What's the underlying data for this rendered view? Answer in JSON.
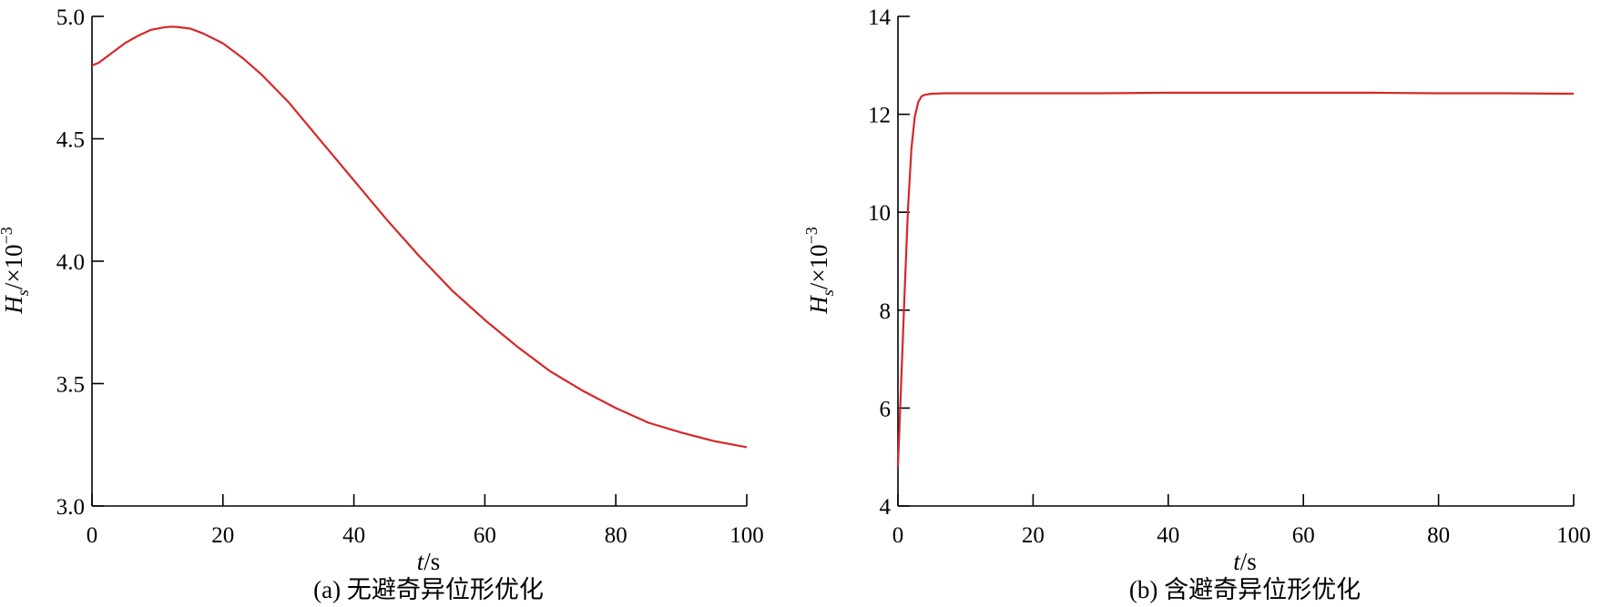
{
  "chart_data": [
    {
      "type": "line",
      "caption": "(a) 无避奇异位形优化",
      "xlabel": {
        "var": "t",
        "unit": "/s"
      },
      "ylabel": {
        "var": "H",
        "sub": "s",
        "unit": "/×10",
        "sup": "−3"
      },
      "xlim": [
        0,
        100
      ],
      "ylim": [
        3.0,
        5.0
      ],
      "xticks": [
        0,
        20,
        40,
        60,
        80,
        100
      ],
      "yticks": [
        3.0,
        3.5,
        4.0,
        4.5,
        5.0
      ],
      "ytick_labels": [
        "3.0",
        "3.5",
        "4.0",
        "4.5",
        "5.0"
      ],
      "grid": false,
      "series": [
        {
          "color": "#d62728",
          "x": [
            0,
            1,
            3,
            5,
            7,
            9,
            11,
            12,
            13,
            15,
            17,
            20,
            23,
            26,
            30,
            35,
            40,
            45,
            50,
            55,
            60,
            65,
            70,
            75,
            80,
            85,
            90,
            95,
            100
          ],
          "y": [
            4.8,
            4.81,
            4.85,
            4.89,
            4.92,
            4.945,
            4.955,
            4.958,
            4.957,
            4.95,
            4.93,
            4.89,
            4.83,
            4.76,
            4.65,
            4.49,
            4.33,
            4.17,
            4.02,
            3.88,
            3.76,
            3.65,
            3.55,
            3.47,
            3.4,
            3.34,
            3.3,
            3.265,
            3.24
          ]
        }
      ]
    },
    {
      "type": "line",
      "caption": "(b) 含避奇异位形优化",
      "xlabel": {
        "var": "t",
        "unit": "/s"
      },
      "ylabel": {
        "var": "H",
        "sub": "s",
        "unit": "/×10",
        "sup": "−3"
      },
      "xlim": [
        0,
        100
      ],
      "ylim": [
        4,
        14
      ],
      "xticks": [
        0,
        20,
        40,
        60,
        80,
        100
      ],
      "yticks": [
        4,
        6,
        8,
        10,
        12,
        14
      ],
      "ytick_labels": [
        "4",
        "6",
        "8",
        "10",
        "12",
        "14"
      ],
      "grid": false,
      "series": [
        {
          "color": "#d62728",
          "x": [
            0,
            0.5,
            1,
            1.5,
            2,
            2.5,
            3,
            3.5,
            4,
            5,
            7,
            10,
            20,
            30,
            40,
            50,
            60,
            70,
            80,
            90,
            100
          ],
          "y": [
            4.8,
            6.6,
            8.4,
            10.1,
            11.3,
            11.95,
            12.25,
            12.37,
            12.4,
            12.42,
            12.43,
            12.43,
            12.43,
            12.43,
            12.44,
            12.44,
            12.44,
            12.44,
            12.43,
            12.43,
            12.42
          ]
        }
      ]
    }
  ]
}
